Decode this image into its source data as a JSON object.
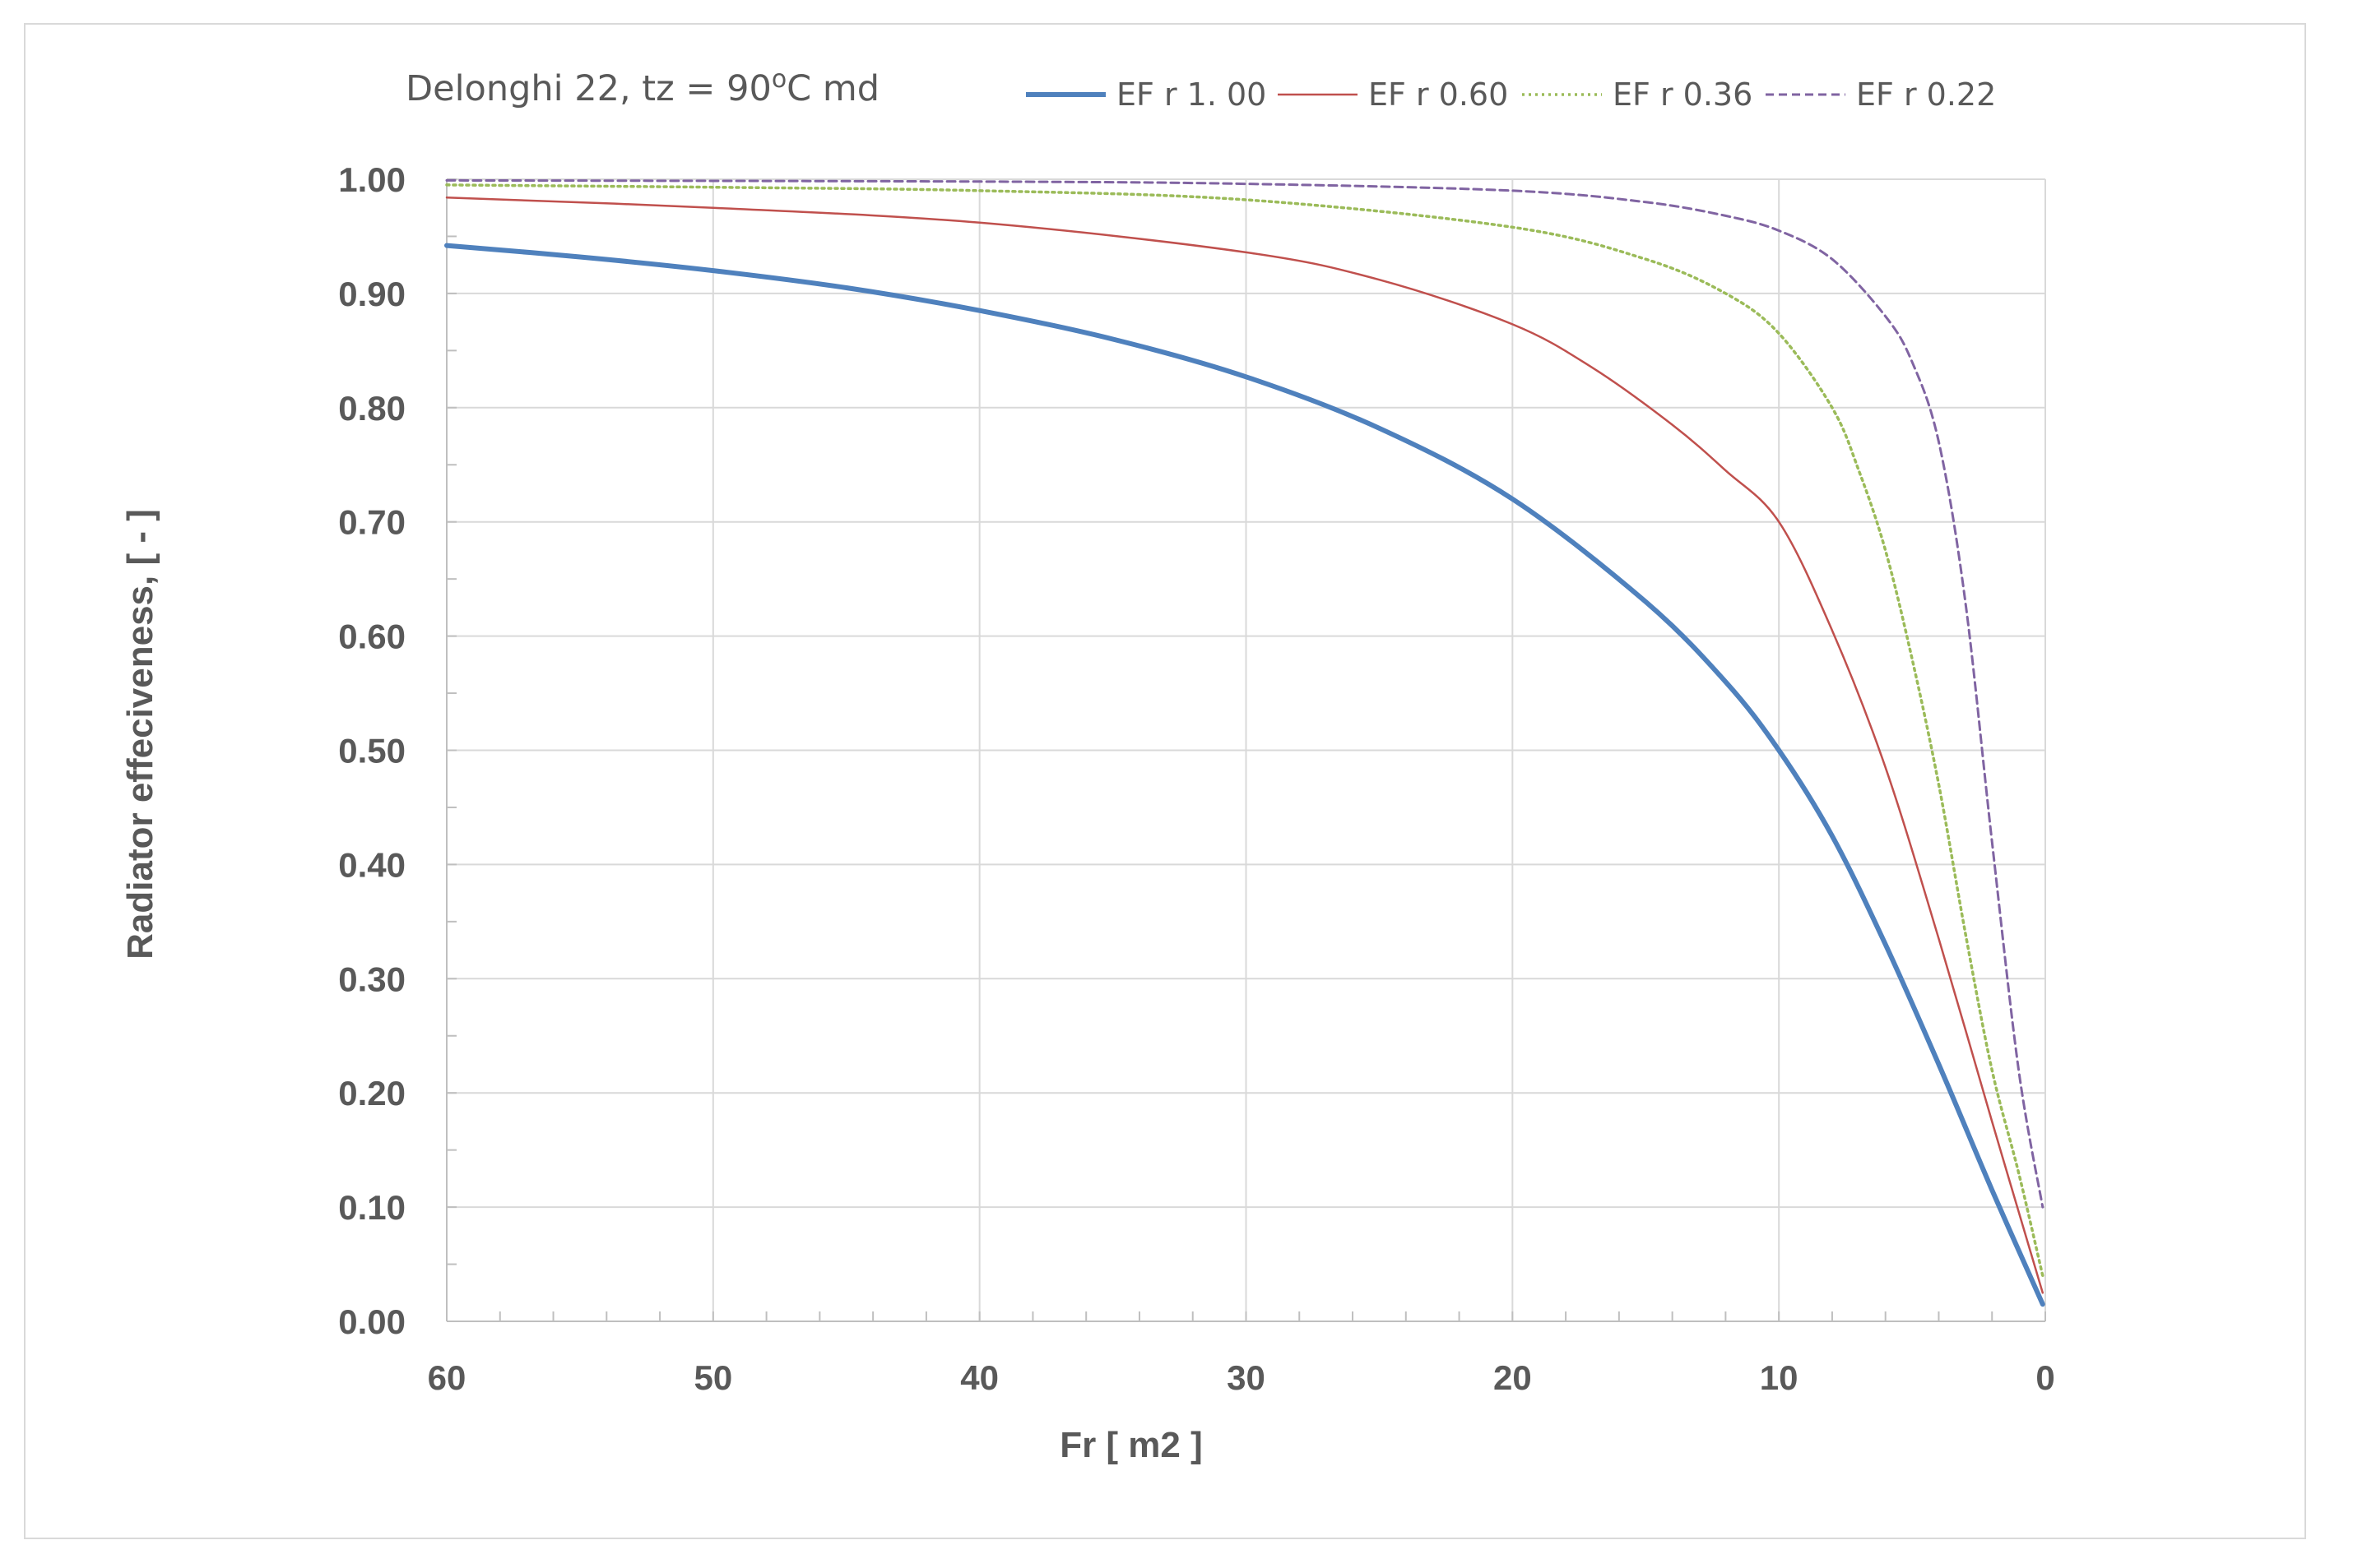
{
  "chart_data": {
    "type": "line",
    "title": {
      "prefix": "Delonghi 22, tz = 90",
      "superscript": "o",
      "suffix": "C md"
    },
    "xlabel": "Fr [ m2 ]",
    "ylabel": "Radiator effeciveness, [ - ]",
    "xlim": [
      60,
      0
    ],
    "ylim": [
      0,
      1
    ],
    "x_ticks": [
      "60",
      "50",
      "40",
      "30",
      "20",
      "10",
      "0"
    ],
    "y_ticks": [
      "0.00",
      "0.10",
      "0.20",
      "0.30",
      "0.40",
      "0.50",
      "0.60",
      "0.70",
      "0.80",
      "0.90",
      "1.00"
    ],
    "grid": true,
    "legend_position": "top",
    "series": [
      {
        "name": "EF r 1. 00",
        "color": "#4f81bd",
        "style": "solid-thick",
        "x": [
          60,
          55,
          50,
          45,
          40,
          35,
          30,
          25,
          20,
          15,
          12,
          10,
          8,
          6,
          4,
          2,
          0.1
        ],
        "y": [
          0.942,
          0.932,
          0.92,
          0.905,
          0.885,
          0.86,
          0.827,
          0.782,
          0.72,
          0.63,
          0.56,
          0.5,
          0.425,
          0.33,
          0.225,
          0.115,
          0.015
        ]
      },
      {
        "name": "EF r 0.60",
        "color": "#c0504d",
        "style": "solid-thin",
        "x": [
          60,
          50,
          40,
          30,
          25,
          20,
          17,
          14,
          12,
          10,
          8,
          6,
          4,
          2,
          0.1
        ],
        "y": [
          0.984,
          0.975,
          0.962,
          0.936,
          0.912,
          0.873,
          0.835,
          0.785,
          0.745,
          0.7,
          0.605,
          0.485,
          0.335,
          0.175,
          0.025
        ]
      },
      {
        "name": "EF r 0.36",
        "color": "#9bbb59",
        "style": "dotted",
        "x": [
          60,
          50,
          40,
          30,
          20,
          15,
          12,
          10,
          8,
          7,
          6,
          5,
          4,
          3,
          2,
          1,
          0.1
        ],
        "y": [
          0.995,
          0.993,
          0.99,
          0.982,
          0.958,
          0.93,
          0.9,
          0.865,
          0.8,
          0.745,
          0.675,
          0.58,
          0.47,
          0.34,
          0.22,
          0.13,
          0.04
        ]
      },
      {
        "name": "EF r 0.22",
        "color": "#8064a2",
        "style": "dashed",
        "x": [
          60,
          40,
          30,
          20,
          15,
          12,
          10,
          8,
          6,
          5,
          4,
          3,
          2,
          1,
          0.1
        ],
        "y": [
          0.999,
          0.998,
          0.996,
          0.99,
          0.98,
          0.968,
          0.955,
          0.93,
          0.88,
          0.84,
          0.77,
          0.63,
          0.42,
          0.22,
          0.1
        ]
      }
    ]
  }
}
